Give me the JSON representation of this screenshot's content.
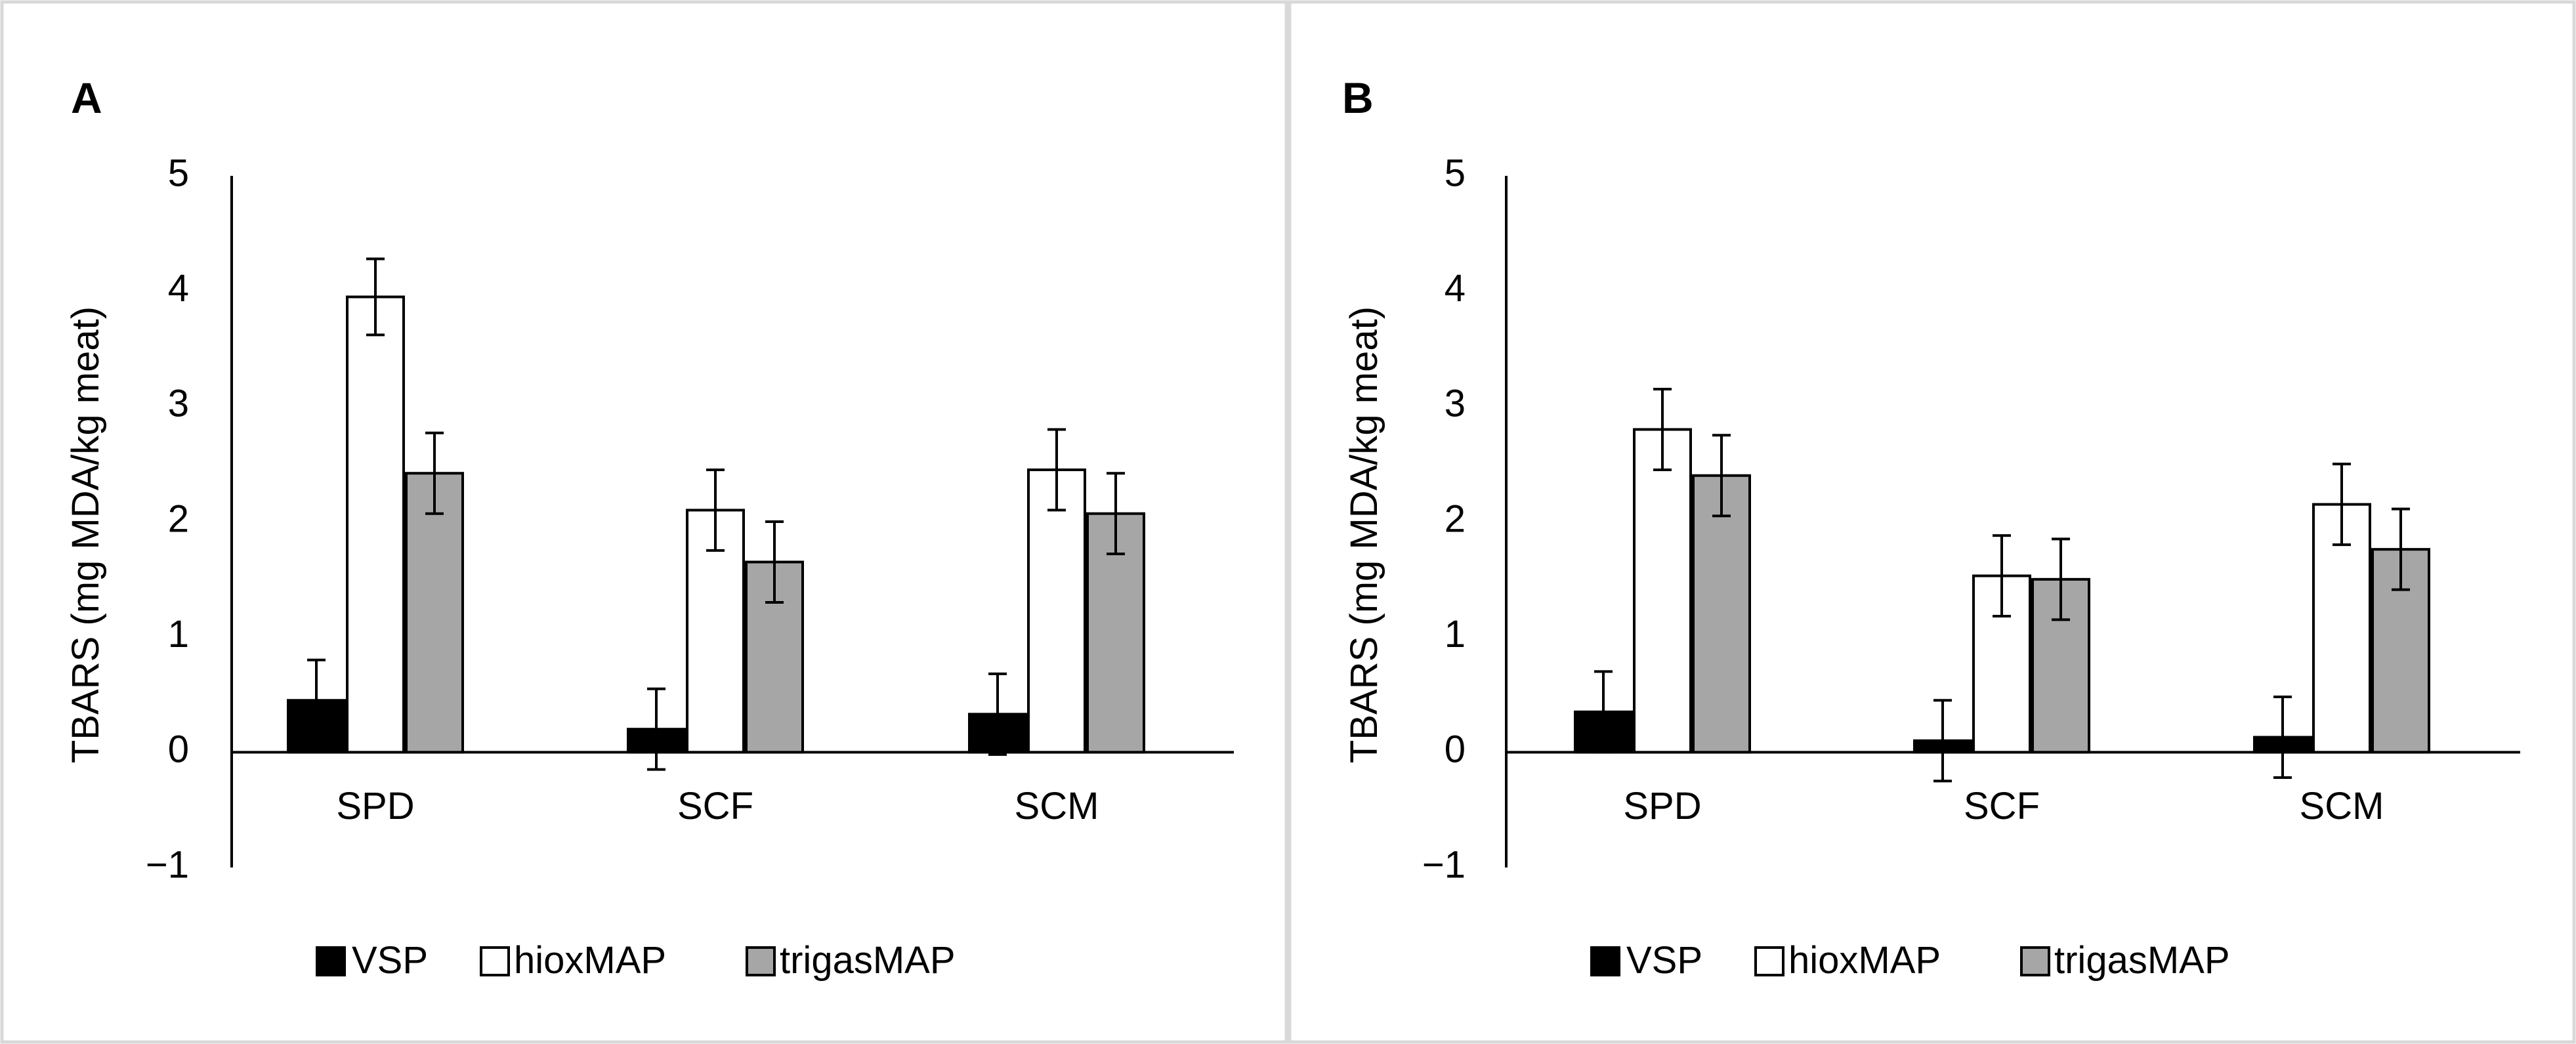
{
  "colors": {
    "VSP": "#000000",
    "hioxMAP": "#ffffff",
    "trigasMAP": "#a6a6a6",
    "axis": "#000000",
    "panel_border": "#d9d9d9"
  },
  "chart_data": [
    {
      "type": "bar",
      "panel_label": "A",
      "title": "",
      "xlabel": "",
      "ylabel": "TBARS (mg MDA/kg meat)",
      "ylim": [
        -1,
        5
      ],
      "yticks": [
        "5",
        "4",
        "3",
        "2",
        "1",
        "0",
        "−1"
      ],
      "categories": [
        "SPD",
        "SCF",
        "SCM"
      ],
      "series": [
        {
          "name": "VSP",
          "values": [
            0.45,
            0.2,
            0.33
          ],
          "errors": [
            0.35,
            0.35,
            0.35
          ]
        },
        {
          "name": "hioxMAP",
          "values": [
            3.95,
            2.1,
            2.45
          ],
          "errors": [
            0.33,
            0.35,
            0.35
          ]
        },
        {
          "name": "trigasMAP",
          "values": [
            2.42,
            1.65,
            2.07
          ],
          "errors": [
            0.35,
            0.35,
            0.35
          ]
        }
      ],
      "legend": {
        "position": "bottom",
        "entries": [
          "VSP",
          "hioxMAP",
          "trigasMAP"
        ]
      },
      "grid": false
    },
    {
      "type": "bar",
      "panel_label": "B",
      "title": "",
      "xlabel": "",
      "ylabel": "TBARS (mg MDA/kg meat)",
      "ylim": [
        -1,
        5
      ],
      "yticks": [
        "5",
        "4",
        "3",
        "2",
        "1",
        "0",
        "−1"
      ],
      "categories": [
        "SPD",
        "SCF",
        "SCM"
      ],
      "series": [
        {
          "name": "VSP",
          "values": [
            0.35,
            0.1,
            0.13
          ],
          "errors": [
            0.35,
            0.35,
            0.35
          ]
        },
        {
          "name": "hioxMAP",
          "values": [
            2.8,
            1.53,
            2.15
          ],
          "errors": [
            0.35,
            0.35,
            0.35
          ]
        },
        {
          "name": "trigasMAP",
          "values": [
            2.4,
            1.5,
            1.76
          ],
          "errors": [
            0.35,
            0.35,
            0.35
          ]
        }
      ],
      "legend": {
        "position": "bottom",
        "entries": [
          "VSP",
          "hioxMAP",
          "trigasMAP"
        ]
      },
      "grid": false
    }
  ]
}
